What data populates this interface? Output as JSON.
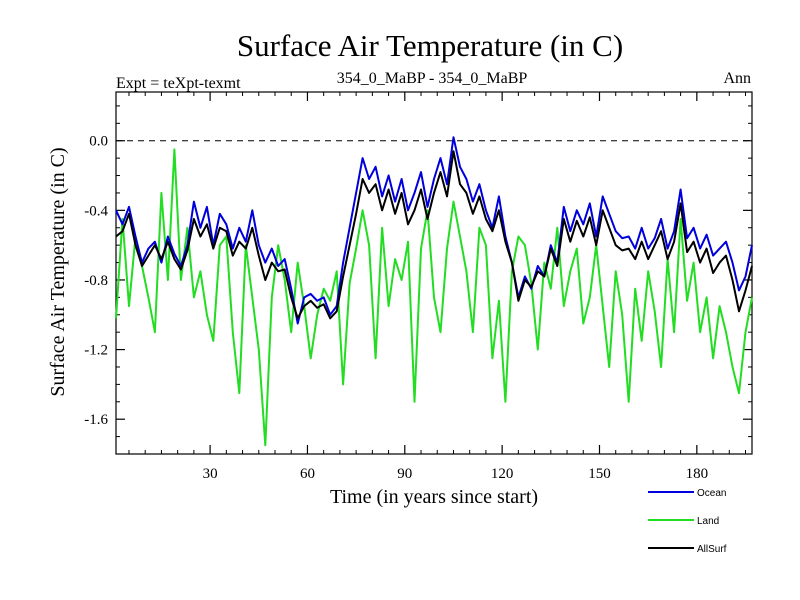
{
  "chart_data": {
    "type": "line",
    "title": "Surface Air Temperature (in C)",
    "subtitle_left": "Expt = teXpt-texmt",
    "subtitle_center": "354_0_MaBP - 354_0_MaBP",
    "subtitle_right": "Ann",
    "xlabel": "Time (in years since start)",
    "ylabel": "Surface Air Temperature (in C)",
    "xlim": [
      1,
      197
    ],
    "ylim": [
      -1.8,
      0.28
    ],
    "xticks": [
      30,
      60,
      90,
      120,
      150,
      180
    ],
    "xtick_labels": [
      "30",
      "60",
      "90",
      "120",
      "150",
      "180"
    ],
    "yticks": [
      0.0,
      -0.4,
      -0.8,
      -1.2,
      -1.6
    ],
    "ytick_labels": [
      "0.0",
      "-0.4",
      "-0.8",
      "-1.2",
      "-1.6"
    ],
    "reference_line": 0.0,
    "x": [
      1,
      3,
      5,
      7,
      9,
      11,
      13,
      15,
      17,
      19,
      21,
      23,
      25,
      27,
      29,
      31,
      33,
      35,
      37,
      39,
      41,
      43,
      45,
      47,
      49,
      51,
      53,
      55,
      57,
      59,
      61,
      63,
      65,
      67,
      69,
      71,
      73,
      75,
      77,
      79,
      81,
      83,
      85,
      87,
      89,
      91,
      93,
      95,
      97,
      99,
      101,
      103,
      105,
      107,
      109,
      111,
      113,
      115,
      117,
      119,
      121,
      123,
      125,
      127,
      129,
      131,
      133,
      135,
      137,
      139,
      141,
      143,
      145,
      147,
      149,
      151,
      153,
      155,
      157,
      159,
      161,
      163,
      165,
      167,
      169,
      171,
      173,
      175,
      177,
      179,
      181,
      183,
      185,
      187,
      189,
      191,
      193,
      195,
      197
    ],
    "series": [
      {
        "name": "Ocean",
        "color": "#0000dd",
        "values": [
          -0.4,
          -0.48,
          -0.38,
          -0.55,
          -0.7,
          -0.62,
          -0.58,
          -0.7,
          -0.55,
          -0.65,
          -0.72,
          -0.6,
          -0.35,
          -0.5,
          -0.38,
          -0.6,
          -0.42,
          -0.48,
          -0.62,
          -0.5,
          -0.58,
          -0.4,
          -0.6,
          -0.7,
          -0.62,
          -0.72,
          -0.68,
          -0.85,
          -1.05,
          -0.9,
          -0.88,
          -0.92,
          -0.9,
          -1.0,
          -0.95,
          -0.7,
          -0.5,
          -0.3,
          -0.1,
          -0.22,
          -0.15,
          -0.32,
          -0.2,
          -0.35,
          -0.22,
          -0.4,
          -0.3,
          -0.18,
          -0.38,
          -0.22,
          -0.1,
          -0.25,
          0.02,
          -0.15,
          -0.22,
          -0.35,
          -0.25,
          -0.4,
          -0.5,
          -0.32,
          -0.55,
          -0.7,
          -0.9,
          -0.78,
          -0.85,
          -0.72,
          -0.78,
          -0.6,
          -0.7,
          -0.38,
          -0.52,
          -0.4,
          -0.48,
          -0.36,
          -0.55,
          -0.32,
          -0.42,
          -0.52,
          -0.56,
          -0.55,
          -0.62,
          -0.5,
          -0.62,
          -0.56,
          -0.45,
          -0.62,
          -0.52,
          -0.28,
          -0.56,
          -0.5,
          -0.62,
          -0.54,
          -0.66,
          -0.62,
          -0.58,
          -0.7,
          -0.86,
          -0.78,
          -0.6
        ]
      },
      {
        "name": "Land",
        "color": "#22dd22",
        "values": [
          -1.02,
          -0.45,
          -0.95,
          -0.55,
          -0.72,
          -0.9,
          -1.1,
          -0.3,
          -0.8,
          -0.05,
          -0.8,
          -0.5,
          -0.9,
          -0.75,
          -1.0,
          -1.15,
          -0.6,
          -0.55,
          -1.1,
          -1.45,
          -0.6,
          -0.9,
          -1.2,
          -1.75,
          -0.9,
          -0.6,
          -0.8,
          -1.1,
          -0.7,
          -0.95,
          -1.25,
          -1.0,
          -0.85,
          -0.92,
          -0.75,
          -1.4,
          -0.82,
          -0.62,
          -0.4,
          -0.6,
          -1.25,
          -0.5,
          -0.95,
          -0.68,
          -0.8,
          -0.58,
          -1.5,
          -0.62,
          -0.4,
          -0.9,
          -1.1,
          -0.62,
          -0.35,
          -0.55,
          -0.75,
          -1.1,
          -0.5,
          -0.6,
          -1.25,
          -0.92,
          -1.5,
          -0.75,
          -0.55,
          -0.6,
          -0.82,
          -1.2,
          -0.7,
          -0.85,
          -0.5,
          -0.95,
          -0.75,
          -0.62,
          -1.05,
          -0.9,
          -0.6,
          -0.95,
          -1.3,
          -0.75,
          -1.0,
          -1.5,
          -0.85,
          -1.15,
          -0.75,
          -0.98,
          -1.3,
          -0.68,
          -1.1,
          -0.45,
          -0.92,
          -0.7,
          -1.1,
          -0.9,
          -1.25,
          -0.95,
          -1.1,
          -1.3,
          -1.45,
          -1.1,
          -0.9
        ]
      },
      {
        "name": "AllSurf",
        "color": "#000000",
        "values": [
          -0.55,
          -0.52,
          -0.42,
          -0.6,
          -0.72,
          -0.66,
          -0.6,
          -0.68,
          -0.58,
          -0.68,
          -0.74,
          -0.63,
          -0.45,
          -0.55,
          -0.48,
          -0.62,
          -0.5,
          -0.52,
          -0.66,
          -0.58,
          -0.62,
          -0.5,
          -0.66,
          -0.8,
          -0.7,
          -0.75,
          -0.74,
          -0.9,
          -1.02,
          -0.95,
          -0.92,
          -0.96,
          -0.94,
          -1.02,
          -0.98,
          -0.78,
          -0.6,
          -0.42,
          -0.22,
          -0.3,
          -0.25,
          -0.4,
          -0.28,
          -0.42,
          -0.3,
          -0.48,
          -0.4,
          -0.28,
          -0.45,
          -0.3,
          -0.18,
          -0.32,
          -0.06,
          -0.25,
          -0.3,
          -0.42,
          -0.32,
          -0.45,
          -0.52,
          -0.4,
          -0.58,
          -0.7,
          -0.92,
          -0.8,
          -0.84,
          -0.75,
          -0.78,
          -0.62,
          -0.72,
          -0.45,
          -0.58,
          -0.46,
          -0.55,
          -0.44,
          -0.6,
          -0.4,
          -0.5,
          -0.6,
          -0.63,
          -0.62,
          -0.68,
          -0.58,
          -0.68,
          -0.6,
          -0.52,
          -0.68,
          -0.58,
          -0.36,
          -0.64,
          -0.58,
          -0.7,
          -0.62,
          -0.76,
          -0.7,
          -0.66,
          -0.8,
          -0.98,
          -0.86,
          -0.72
        ]
      }
    ]
  }
}
